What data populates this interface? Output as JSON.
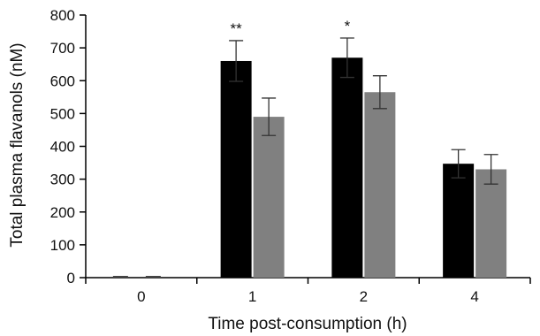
{
  "chart_data": {
    "type": "bar",
    "categories": [
      "0",
      "1",
      "2",
      "4"
    ],
    "series": [
      {
        "color": "#000000",
        "values": [
          0,
          660,
          670,
          347
        ],
        "errors": [
          0,
          62,
          60,
          43
        ]
      },
      {
        "color": "#808080",
        "values": [
          0,
          490,
          565,
          330
        ],
        "errors": [
          0,
          57,
          50,
          45
        ]
      }
    ],
    "annotations": [
      {
        "category": "1",
        "series": 0,
        "text": "**"
      },
      {
        "category": "2",
        "series": 0,
        "text": "*"
      }
    ],
    "xlabel": "Time post-consumption (h)",
    "ylabel": "Total plasma flavanols (nM)",
    "ylim": [
      0,
      800
    ],
    "yticks": [
      "0",
      "100",
      "200",
      "300",
      "400",
      "500",
      "600",
      "700",
      "800"
    ],
    "grid": false,
    "legend": "none"
  }
}
